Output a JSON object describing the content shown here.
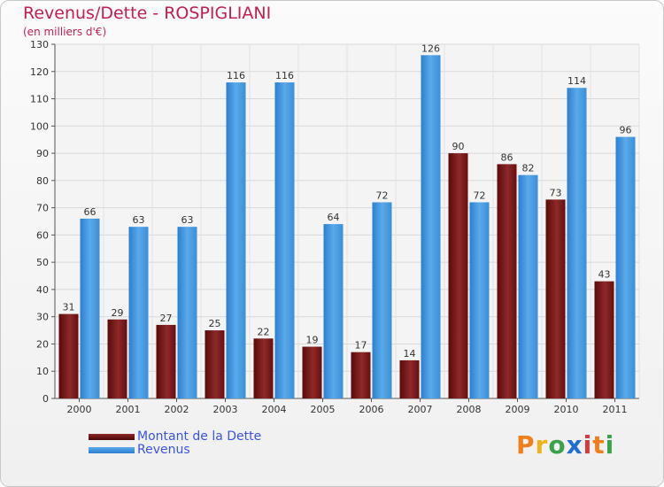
{
  "title": "Revenus/Dette - ROSPIGLIANI",
  "subtitle": "(en milliers d'€)",
  "logo": {
    "letters": [
      "P",
      "r",
      "o",
      "x",
      "i",
      "t",
      "i"
    ],
    "colors": [
      "#f07f1a",
      "#f0b21a",
      "#3aa34a",
      "#1f6fd1",
      "#d43a3a",
      "#f07f1a",
      "#3aa34a"
    ]
  },
  "legend": [
    {
      "label": "Montant de la Dette",
      "color": "#6a0d0d"
    },
    {
      "label": "Revenus",
      "color": "#3a8fd6"
    }
  ],
  "chart_data": {
    "type": "bar",
    "title": "Revenus/Dette - ROSPIGLIANI",
    "ylabel": "(en milliers d'€)",
    "categories": [
      "2000",
      "2001",
      "2002",
      "2003",
      "2004",
      "2005",
      "2006",
      "2007",
      "2008",
      "2009",
      "2010",
      "2011"
    ],
    "series": [
      {
        "name": "Montant de la Dette",
        "values": [
          31,
          29,
          27,
          25,
          22,
          19,
          17,
          14,
          90,
          86,
          73,
          43
        ]
      },
      {
        "name": "Revenus",
        "values": [
          66,
          63,
          63,
          116,
          116,
          64,
          72,
          126,
          72,
          82,
          114,
          96
        ]
      }
    ],
    "ylim": [
      0,
      130
    ],
    "yticks": [
      0,
      10,
      20,
      30,
      40,
      50,
      60,
      70,
      80,
      90,
      100,
      110,
      120,
      130
    ],
    "grid": true
  }
}
